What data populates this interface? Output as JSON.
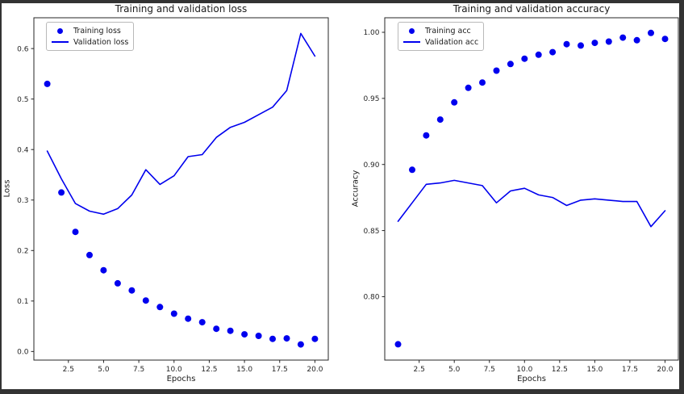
{
  "frame": {
    "border_color": "#333333",
    "figure_background": "#ffffff"
  },
  "chart_data": [
    {
      "type": "scatter+line",
      "title": "Training and validation loss",
      "xlabel": "Epochs",
      "ylabel": "Loss",
      "color": "#0000ee",
      "x": [
        1,
        2,
        3,
        4,
        5,
        6,
        7,
        8,
        9,
        10,
        11,
        12,
        13,
        14,
        15,
        16,
        17,
        18,
        19,
        20
      ],
      "series": [
        {
          "name": "Training loss",
          "style": "scatter",
          "values": [
            0.53,
            0.315,
            0.237,
            0.191,
            0.161,
            0.135,
            0.121,
            0.101,
            0.088,
            0.075,
            0.065,
            0.058,
            0.045,
            0.041,
            0.034,
            0.031,
            0.025,
            0.026,
            0.014,
            0.025
          ]
        },
        {
          "name": "Validation loss",
          "style": "line",
          "values": [
            0.397,
            0.342,
            0.293,
            0.278,
            0.272,
            0.283,
            0.31,
            0.36,
            0.331,
            0.348,
            0.386,
            0.39,
            0.424,
            0.444,
            0.454,
            0.469,
            0.484,
            0.517,
            0.63,
            0.585
          ]
        }
      ],
      "xlim": [
        0.05,
        20.95
      ],
      "ylim": [
        -0.017,
        0.661
      ],
      "xticks": [
        2.5,
        5,
        7.5,
        10,
        12.5,
        15,
        17.5,
        20
      ],
      "xtick_labels": [
        "2.5",
        "5.0",
        "7.5",
        "10.0",
        "12.5",
        "15.0",
        "17.5",
        "20.0"
      ],
      "yticks": [
        0,
        0.1,
        0.2,
        0.3,
        0.4,
        0.5,
        0.6
      ],
      "ytick_labels": [
        "0.0",
        "0.1",
        "0.2",
        "0.3",
        "0.4",
        "0.5",
        "0.6"
      ],
      "grid": false,
      "legend_position": "upper left"
    },
    {
      "type": "scatter+line",
      "title": "Training and validation accuracy",
      "xlabel": "Epochs",
      "ylabel": "Accuracy",
      "color": "#0000ee",
      "x": [
        1,
        2,
        3,
        4,
        5,
        6,
        7,
        8,
        9,
        10,
        11,
        12,
        13,
        14,
        15,
        16,
        17,
        18,
        19,
        20
      ],
      "series": [
        {
          "name": "Training acc",
          "style": "scatter",
          "values": [
            0.764,
            0.896,
            0.922,
            0.934,
            0.947,
            0.958,
            0.962,
            0.971,
            0.976,
            0.98,
            0.983,
            0.985,
            0.991,
            0.99,
            0.992,
            0.993,
            0.996,
            0.994,
            0.9995,
            0.995
          ]
        },
        {
          "name": "Validation acc",
          "style": "line",
          "values": [
            0.857,
            0.871,
            0.885,
            0.886,
            0.888,
            0.886,
            0.884,
            0.871,
            0.88,
            0.882,
            0.877,
            0.875,
            0.869,
            0.873,
            0.874,
            0.873,
            0.872,
            0.872,
            0.853,
            0.865
          ]
        }
      ],
      "xlim": [
        0.05,
        20.95
      ],
      "ylim": [
        0.752,
        1.011
      ],
      "xticks": [
        2.5,
        5,
        7.5,
        10,
        12.5,
        15,
        17.5,
        20
      ],
      "xtick_labels": [
        "2.5",
        "5.0",
        "7.5",
        "10.0",
        "12.5",
        "15.0",
        "17.5",
        "20.0"
      ],
      "yticks": [
        0.8,
        0.85,
        0.9,
        0.95,
        1.0
      ],
      "ytick_labels": [
        "0.80",
        "0.85",
        "0.90",
        "0.95",
        "1.00"
      ],
      "grid": false,
      "legend_position": "upper left"
    }
  ]
}
